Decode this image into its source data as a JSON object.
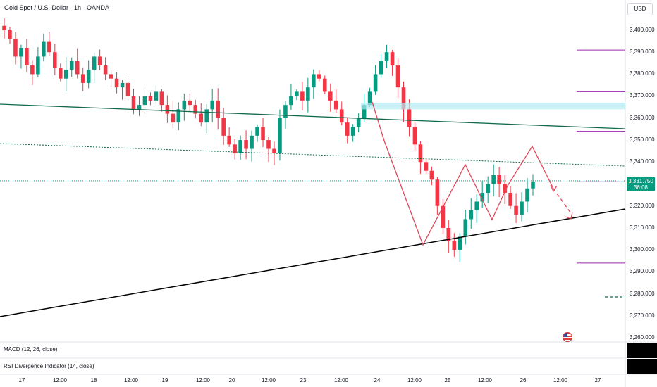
{
  "header": {
    "title": "Gold Spot / U.S. Dollar · 1h · OANDA",
    "currency": "USD"
  },
  "price_axis": {
    "labels": [
      "3,400.000",
      "3,390.000",
      "3,380.000",
      "3,370.000",
      "3,360.000",
      "3,350.000",
      "3,340.000",
      "3,320.000",
      "3,310.000",
      "3,300.000",
      "3,290.000",
      "3,280.000",
      "3,270.000",
      "3,260.000"
    ]
  },
  "price_tag": {
    "price": "3,331.750",
    "countdown": "36:08"
  },
  "time_axis": {
    "labels": [
      "17",
      "12:00",
      "18",
      "12:00",
      "19",
      "12:00",
      "20",
      "12:00",
      "23",
      "12:00",
      "24",
      "12:00",
      "25",
      "12:00",
      "26",
      "12:00",
      "27"
    ]
  },
  "panes": {
    "macd_label": "MACD (12, 26, close)",
    "rsi_label": "RSI Divergence Indicator (14, close)"
  },
  "colors": {
    "up": "#089981",
    "down": "#f23645",
    "trendline_green": "#0f6b4b",
    "trendline_black": "#000000",
    "zigzag": "#e0475a",
    "levels": "#9c27b0",
    "zone": "#b2ebf2"
  },
  "chart_data": {
    "type": "candlestick",
    "symbol": "Gold Spot / U.S. Dollar",
    "interval": "1h",
    "ylim": [
      3258,
      3410
    ],
    "current_price": 3331.75,
    "horizontal_levels": [
      3391,
      3372,
      3354,
      3331,
      3294
    ],
    "zone": [
      3364,
      3367
    ],
    "close_path": [
      3400,
      3396,
      3388,
      3392,
      3384,
      3380,
      3388,
      3395,
      3390,
      3383,
      3378,
      3382,
      3386,
      3380,
      3376,
      3382,
      3388,
      3384,
      3380,
      3378,
      3374,
      3376,
      3370,
      3364,
      3366,
      3370,
      3368,
      3372,
      3366,
      3362,
      3358,
      3364,
      3368,
      3366,
      3362,
      3358,
      3364,
      3368,
      3360,
      3352,
      3348,
      3344,
      3350,
      3346,
      3352,
      3356,
      3350,
      3346,
      3344,
      3360,
      3366,
      3370,
      3372,
      3368,
      3374,
      3380,
      3378,
      3372,
      3368,
      3364,
      3358,
      3352,
      3356,
      3360,
      3366,
      3372,
      3380,
      3386,
      3390,
      3384,
      3374,
      3364,
      3356,
      3348,
      3340,
      3336,
      3332,
      3320,
      3310,
      3304,
      3300,
      3306,
      3314,
      3318,
      3322,
      3326,
      3330,
      3334,
      3330,
      3326,
      3320,
      3316,
      3322,
      3328,
      3331
    ],
    "projection": [
      [
        3300,
        3338
      ],
      [
        3314,
        3346
      ],
      [
        3330,
        3314
      ]
    ]
  }
}
